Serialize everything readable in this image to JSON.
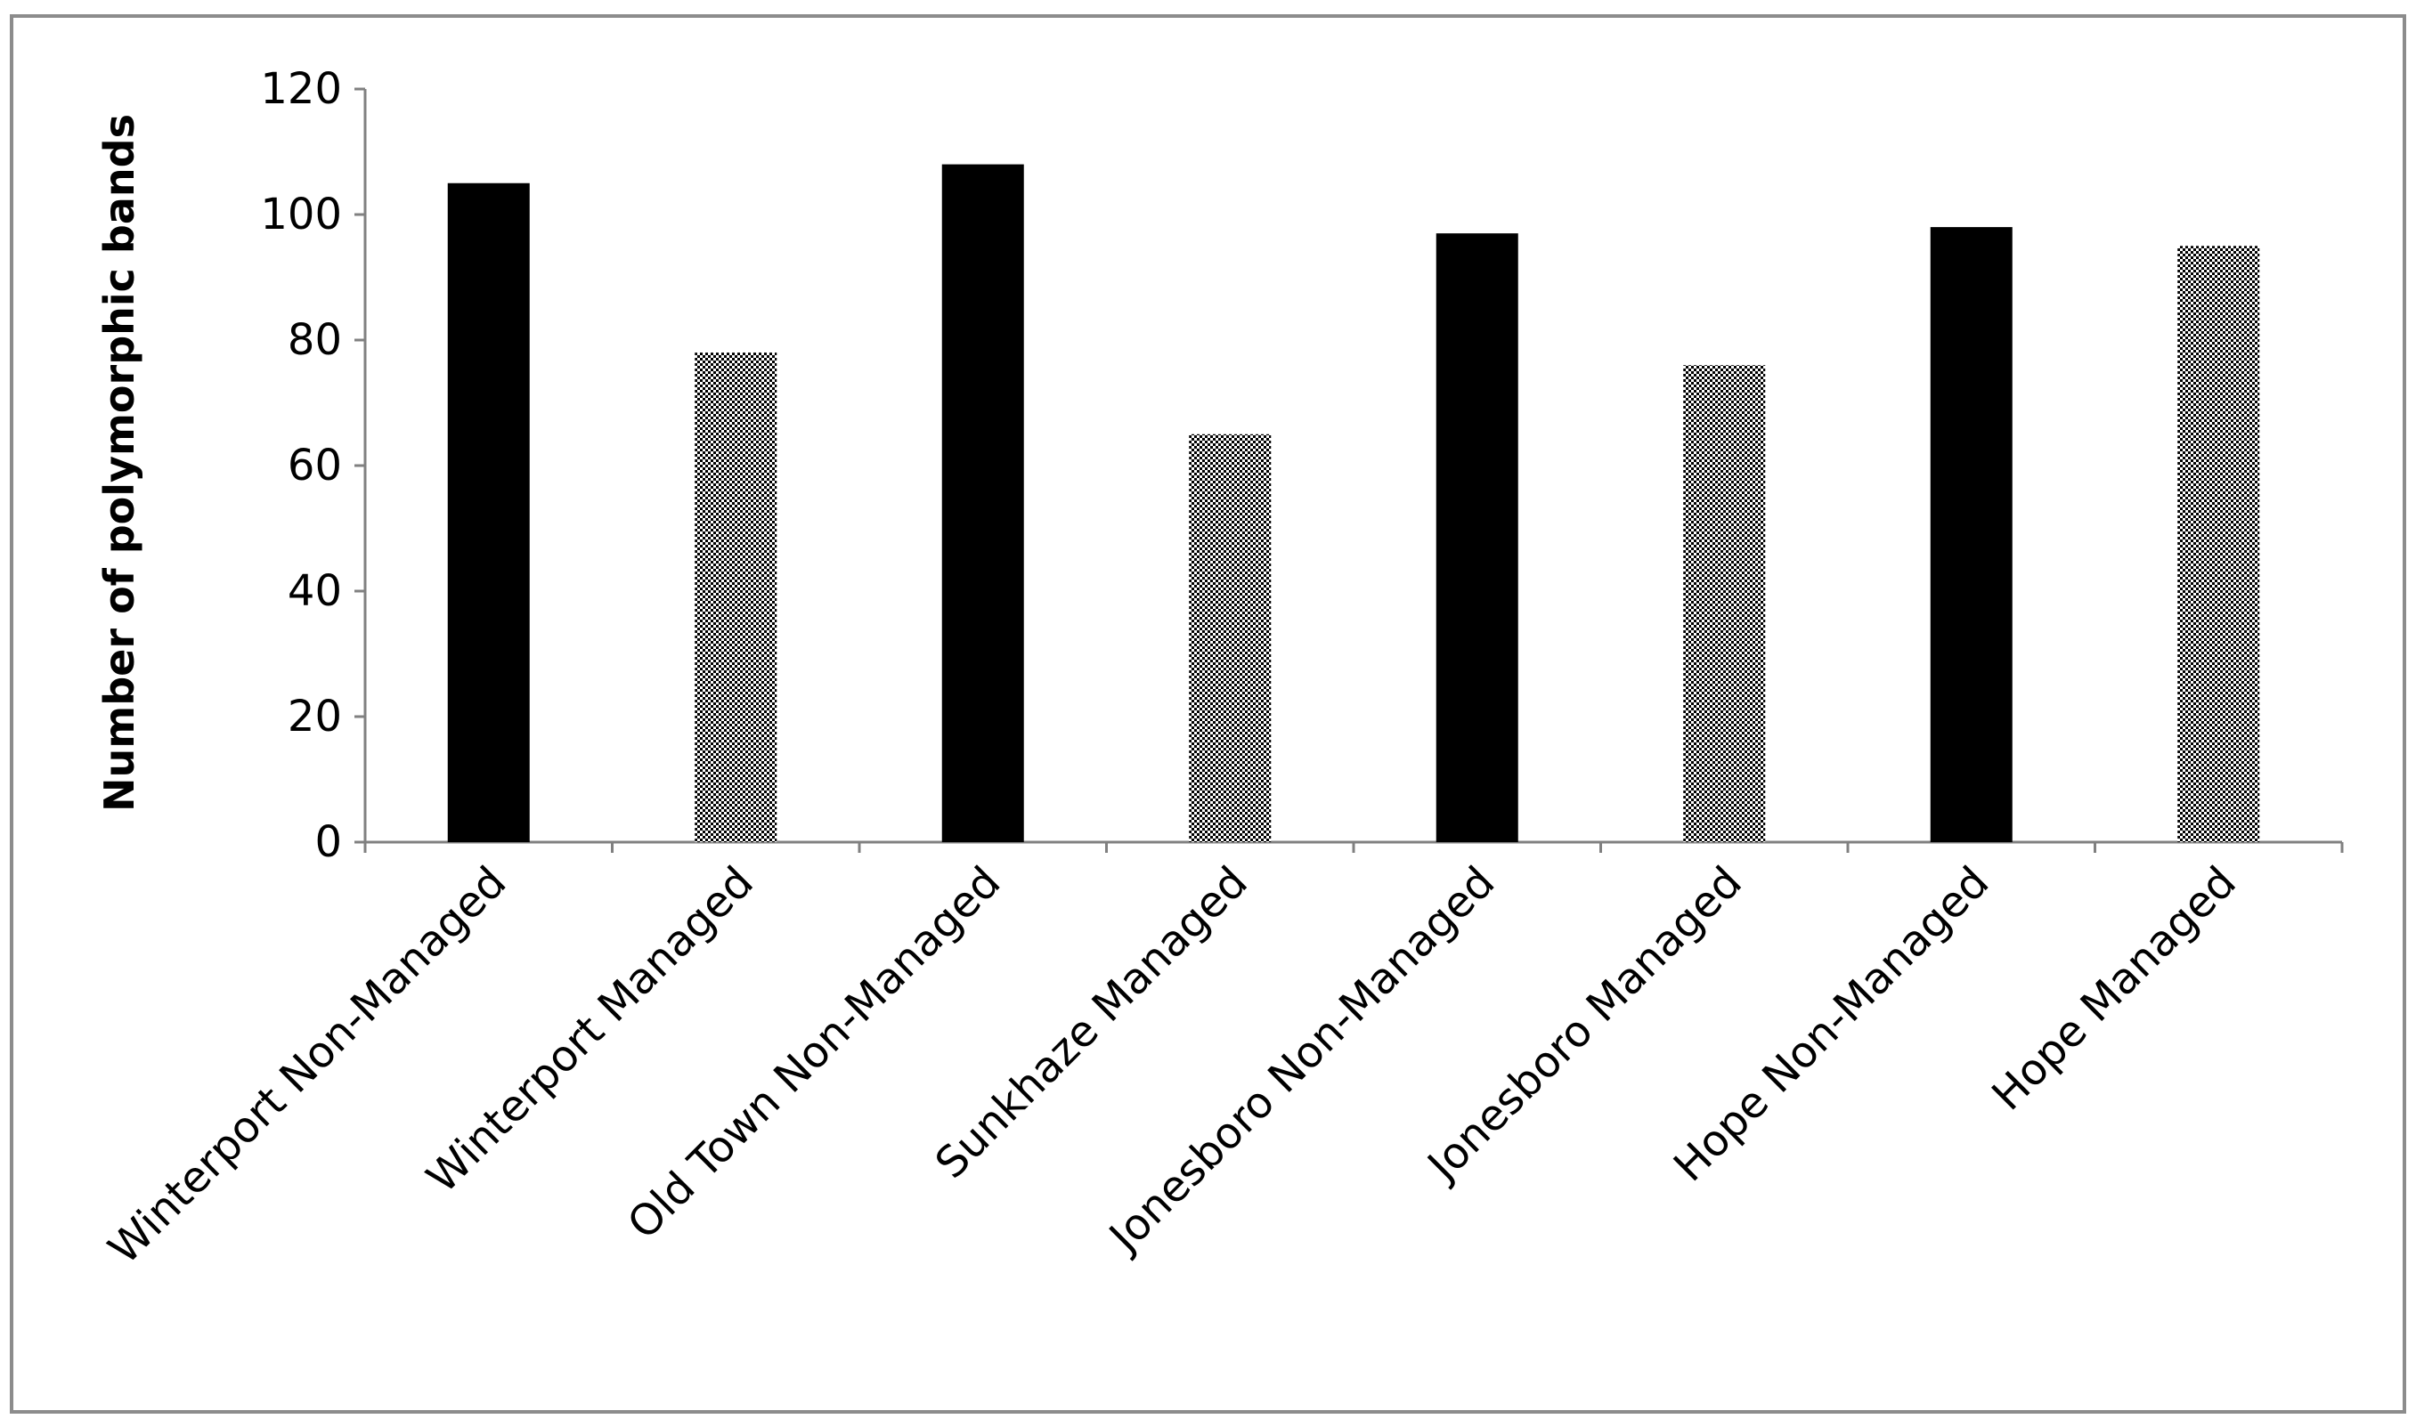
{
  "chart_data": {
    "type": "bar",
    "title": "",
    "xlabel": "",
    "ylabel": "Number of polymorphic bands",
    "ylim": [
      0,
      120
    ],
    "yticks": [
      0,
      20,
      40,
      60,
      80,
      100,
      120
    ],
    "grid": false,
    "legend": "none",
    "categories": [
      "Winterport Non-Managed",
      "Winterport Managed",
      "Old Town Non-Managed",
      "Sunkhaze Managed",
      "Jonesboro Non-Managed",
      "Jonesboro Managed",
      "Hope Non-Managed",
      "Hope Managed"
    ],
    "values": [
      105,
      78,
      108,
      65,
      97,
      76,
      98,
      95
    ],
    "bar_fills": [
      "solid",
      "checkered",
      "solid",
      "checkered",
      "solid",
      "checkered",
      "solid",
      "checkered"
    ],
    "colors": {
      "solid": "#000000",
      "checkered": "#000000",
      "axis": "#808080",
      "frame": "#8c8c8c"
    }
  }
}
